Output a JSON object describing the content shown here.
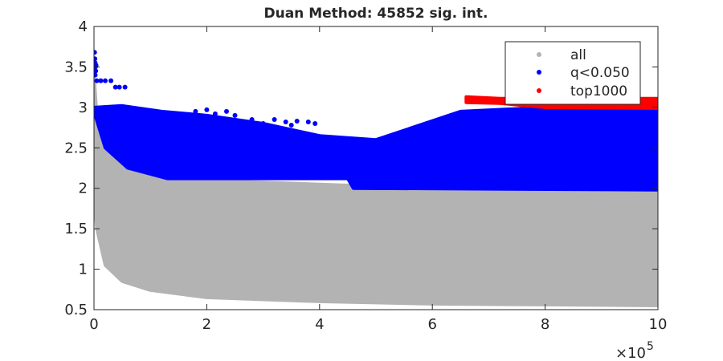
{
  "chart_data": {
    "type": "scatter",
    "title": "Duan Method: 45852 sig. int.",
    "xlabel": "",
    "ylabel": "",
    "xlim": [
      0,
      1000000
    ],
    "ylim": [
      0.5,
      4
    ],
    "x_exponent_label": "×10",
    "x_exponent_power": "5",
    "x_ticks": [
      {
        "value": 0,
        "label": "0"
      },
      {
        "value": 200000,
        "label": "2"
      },
      {
        "value": 400000,
        "label": "4"
      },
      {
        "value": 600000,
        "label": "6"
      },
      {
        "value": 800000,
        "label": "8"
      },
      {
        "value": 1000000,
        "label": "10"
      }
    ],
    "y_ticks": [
      {
        "value": 0.5,
        "label": "0.5"
      },
      {
        "value": 1,
        "label": "1"
      },
      {
        "value": 1.5,
        "label": "1.5"
      },
      {
        "value": 2,
        "label": "2"
      },
      {
        "value": 2.5,
        "label": "2.5"
      },
      {
        "value": 3,
        "label": "3"
      },
      {
        "value": 3.5,
        "label": "3.5"
      },
      {
        "value": 4,
        "label": "4"
      }
    ],
    "grid": false,
    "legend_position": "top-right",
    "series": [
      {
        "name": "all",
        "color": "#b3b3b3",
        "region": {
          "x_start": 0,
          "x_end": 1000000,
          "upper": [
            [
              0,
              3.4
            ],
            [
              5000,
              2.9
            ],
            [
              20000,
              2.6
            ],
            [
              50000,
              2.35
            ],
            [
              100000,
              2.2
            ],
            [
              200000,
              2.1
            ],
            [
              400000,
              2.05
            ],
            [
              600000,
              2.0
            ],
            [
              1000000,
              2.0
            ]
          ],
          "lower": [
            [
              0,
              1.9
            ],
            [
              5000,
              1.5
            ],
            [
              20000,
              1.05
            ],
            [
              50000,
              0.85
            ],
            [
              100000,
              0.74
            ],
            [
              200000,
              0.65
            ],
            [
              400000,
              0.6
            ],
            [
              600000,
              0.57
            ],
            [
              800000,
              0.56
            ],
            [
              1000000,
              0.55
            ]
          ]
        }
      },
      {
        "name": "q<0.050",
        "color": "#0000ff",
        "region": {
          "x_start": 0,
          "x_end": 1000000,
          "upper": [
            [
              0,
              3.0
            ],
            [
              50000,
              3.02
            ],
            [
              120000,
              2.95
            ],
            [
              200000,
              2.9
            ],
            [
              300000,
              2.8
            ],
            [
              400000,
              2.65
            ],
            [
              500000,
              2.6
            ],
            [
              650000,
              2.95
            ],
            [
              800000,
              3.0
            ],
            [
              1000000,
              3.0
            ]
          ],
          "lower": [
            [
              0,
              2.95
            ],
            [
              20000,
              2.5
            ],
            [
              60000,
              2.25
            ],
            [
              130000,
              2.12
            ],
            [
              450000,
              2.12
            ],
            [
              460000,
              2.0
            ],
            [
              1000000,
              1.98
            ]
          ]
        },
        "points": [
          [
            1000,
            3.68
          ],
          [
            1500,
            3.6
          ],
          [
            2000,
            3.55
          ],
          [
            2500,
            3.5
          ],
          [
            3000,
            3.45
          ],
          [
            3500,
            3.52
          ],
          [
            2200,
            3.4
          ],
          [
            5000,
            3.33
          ],
          [
            12000,
            3.33
          ],
          [
            20000,
            3.33
          ],
          [
            30000,
            3.33
          ],
          [
            38000,
            3.25
          ],
          [
            45000,
            3.25
          ],
          [
            55000,
            3.25
          ],
          [
            200000,
            2.97
          ],
          [
            215000,
            2.92
          ],
          [
            235000,
            2.95
          ],
          [
            250000,
            2.9
          ],
          [
            280000,
            2.85
          ],
          [
            300000,
            2.8
          ],
          [
            320000,
            2.85
          ],
          [
            340000,
            2.82
          ],
          [
            350000,
            2.78
          ],
          [
            360000,
            2.83
          ],
          [
            380000,
            2.82
          ],
          [
            392000,
            2.8
          ],
          [
            120000,
            2.9
          ],
          [
            140000,
            2.92
          ],
          [
            160000,
            2.88
          ],
          [
            180000,
            2.95
          ]
        ]
      },
      {
        "name": "top1000",
        "color": "#ff0000",
        "region": {
          "x_start": 660000,
          "x_end": 1000000,
          "upper": [
            [
              660000,
              3.13
            ],
            [
              720000,
              3.11
            ],
            [
              800000,
              3.11
            ],
            [
              1000000,
              3.11
            ]
          ],
          "lower": [
            [
              660000,
              3.06
            ],
            [
              720000,
              3.05
            ],
            [
              800000,
              3.0
            ],
            [
              1000000,
              2.99
            ]
          ]
        },
        "points": [
          [
            665000,
            3.12
          ],
          [
            675000,
            3.1
          ],
          [
            690000,
            3.08
          ],
          [
            705000,
            3.1
          ],
          [
            720000,
            3.08
          ]
        ]
      }
    ]
  }
}
